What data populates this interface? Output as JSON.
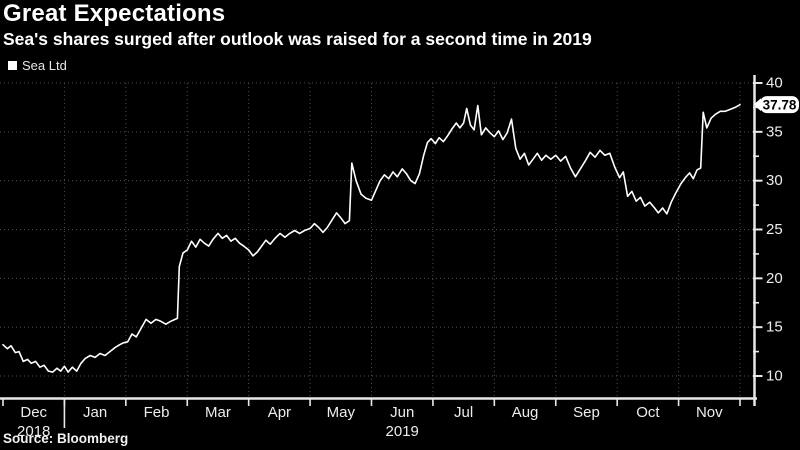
{
  "header": {
    "title": "Great Expectations",
    "subtitle": "Sea's shares surged after outlook was raised for a second time in 2019"
  },
  "legend": {
    "label": "Sea Ltd"
  },
  "source": "Source: Bloomberg",
  "colors": {
    "background": "#000000",
    "text": "#ffffff",
    "axis": "#e8e8e8",
    "grid": "#4f4f4f",
    "line": "#ffffff",
    "callout_bg": "#ffffff",
    "callout_text": "#000000"
  },
  "chart_data": {
    "type": "line",
    "title": "Great Expectations",
    "subtitle": "Sea's shares surged after outlook was raised for a second time in 2019",
    "legend_position": "top-left",
    "grid": true,
    "series_name": "Sea Ltd",
    "x_axis": {
      "unit": "months from Dec 1 2018",
      "months": [
        "Dec",
        "Jan",
        "Feb",
        "Mar",
        "Apr",
        "May",
        "Jun",
        "Jul",
        "Aug",
        "Sep",
        "Oct",
        "Nov"
      ],
      "year_labels": [
        {
          "text": "2018",
          "position_month": 0.5
        },
        {
          "text": "2019",
          "position_month": 6.5
        }
      ],
      "year_boundary_month": 1
    },
    "y_axis": {
      "side": "right",
      "major_ticks": [
        40,
        35,
        30,
        25,
        20,
        15,
        10
      ],
      "minor_ticks": [
        37.5,
        32.5,
        27.5,
        22.5,
        17.5,
        12.5
      ],
      "range": [
        7.7,
        40.6
      ]
    },
    "last_price": 37.78,
    "last_price_label": "37.78",
    "points": [
      [
        0.0,
        13.2
      ],
      [
        0.07,
        12.8
      ],
      [
        0.13,
        13.1
      ],
      [
        0.2,
        12.4
      ],
      [
        0.26,
        12.5
      ],
      [
        0.33,
        11.5
      ],
      [
        0.4,
        11.7
      ],
      [
        0.46,
        11.3
      ],
      [
        0.53,
        11.5
      ],
      [
        0.6,
        10.9
      ],
      [
        0.67,
        11.1
      ],
      [
        0.74,
        10.5
      ],
      [
        0.81,
        10.4
      ],
      [
        0.88,
        10.8
      ],
      [
        0.94,
        10.5
      ],
      [
        1.0,
        11.0
      ],
      [
        1.06,
        10.4
      ],
      [
        1.13,
        10.9
      ],
      [
        1.2,
        10.5
      ],
      [
        1.27,
        11.3
      ],
      [
        1.34,
        11.8
      ],
      [
        1.42,
        12.1
      ],
      [
        1.5,
        11.9
      ],
      [
        1.58,
        12.3
      ],
      [
        1.66,
        12.1
      ],
      [
        1.74,
        12.5
      ],
      [
        1.82,
        12.9
      ],
      [
        1.9,
        13.2
      ],
      [
        1.96,
        13.4
      ],
      [
        2.03,
        13.5
      ],
      [
        2.1,
        14.3
      ],
      [
        2.17,
        14.0
      ],
      [
        2.25,
        14.9
      ],
      [
        2.33,
        15.8
      ],
      [
        2.41,
        15.4
      ],
      [
        2.49,
        15.8
      ],
      [
        2.57,
        15.6
      ],
      [
        2.65,
        15.3
      ],
      [
        2.73,
        15.6
      ],
      [
        2.8,
        15.8
      ],
      [
        2.84,
        15.9
      ],
      [
        2.87,
        21.2
      ],
      [
        2.93,
        22.6
      ],
      [
        3.0,
        22.9
      ],
      [
        3.07,
        23.8
      ],
      [
        3.14,
        23.2
      ],
      [
        3.21,
        24.0
      ],
      [
        3.28,
        23.6
      ],
      [
        3.35,
        23.3
      ],
      [
        3.42,
        24.0
      ],
      [
        3.5,
        24.6
      ],
      [
        3.57,
        24.1
      ],
      [
        3.64,
        24.4
      ],
      [
        3.71,
        23.8
      ],
      [
        3.78,
        24.1
      ],
      [
        3.85,
        23.6
      ],
      [
        3.92,
        23.3
      ],
      [
        4.0,
        22.9
      ],
      [
        4.07,
        22.3
      ],
      [
        4.14,
        22.7
      ],
      [
        4.21,
        23.3
      ],
      [
        4.28,
        23.9
      ],
      [
        4.35,
        23.5
      ],
      [
        4.43,
        24.1
      ],
      [
        4.51,
        24.6
      ],
      [
        4.59,
        24.2
      ],
      [
        4.67,
        24.6
      ],
      [
        4.75,
        24.9
      ],
      [
        4.83,
        24.6
      ],
      [
        4.91,
        24.9
      ],
      [
        5.0,
        25.1
      ],
      [
        5.07,
        25.6
      ],
      [
        5.14,
        25.2
      ],
      [
        5.21,
        24.7
      ],
      [
        5.28,
        25.2
      ],
      [
        5.36,
        26.0
      ],
      [
        5.43,
        26.7
      ],
      [
        5.5,
        26.2
      ],
      [
        5.57,
        25.6
      ],
      [
        5.64,
        25.9
      ],
      [
        5.68,
        31.8
      ],
      [
        5.75,
        30.0
      ],
      [
        5.83,
        28.6
      ],
      [
        5.91,
        28.2
      ],
      [
        6.0,
        28.0
      ],
      [
        6.07,
        29.0
      ],
      [
        6.14,
        30.0
      ],
      [
        6.21,
        30.6
      ],
      [
        6.28,
        30.2
      ],
      [
        6.35,
        30.9
      ],
      [
        6.42,
        30.4
      ],
      [
        6.5,
        31.2
      ],
      [
        6.57,
        30.7
      ],
      [
        6.64,
        30.0
      ],
      [
        6.71,
        29.7
      ],
      [
        6.78,
        30.7
      ],
      [
        6.85,
        32.6
      ],
      [
        6.91,
        33.9
      ],
      [
        6.97,
        34.3
      ],
      [
        7.04,
        33.8
      ],
      [
        7.1,
        34.4
      ],
      [
        7.17,
        34.0
      ],
      [
        7.24,
        34.6
      ],
      [
        7.31,
        35.3
      ],
      [
        7.38,
        35.9
      ],
      [
        7.44,
        35.4
      ],
      [
        7.5,
        35.9
      ],
      [
        7.55,
        37.4
      ],
      [
        7.61,
        35.7
      ],
      [
        7.67,
        35.2
      ],
      [
        7.73,
        37.7
      ],
      [
        7.79,
        34.7
      ],
      [
        7.86,
        35.4
      ],
      [
        7.93,
        34.9
      ],
      [
        8.0,
        34.5
      ],
      [
        8.07,
        35.1
      ],
      [
        8.14,
        34.2
      ],
      [
        8.21,
        34.9
      ],
      [
        8.28,
        36.3
      ],
      [
        8.35,
        33.3
      ],
      [
        8.42,
        32.2
      ],
      [
        8.49,
        32.8
      ],
      [
        8.56,
        31.6
      ],
      [
        8.63,
        32.2
      ],
      [
        8.7,
        32.8
      ],
      [
        8.77,
        32.1
      ],
      [
        8.84,
        32.6
      ],
      [
        8.92,
        32.2
      ],
      [
        9.0,
        32.6
      ],
      [
        9.08,
        32.0
      ],
      [
        9.16,
        32.5
      ],
      [
        9.24,
        31.3
      ],
      [
        9.32,
        30.4
      ],
      [
        9.4,
        31.2
      ],
      [
        9.48,
        32.0
      ],
      [
        9.56,
        32.9
      ],
      [
        9.64,
        32.4
      ],
      [
        9.72,
        33.1
      ],
      [
        9.8,
        32.6
      ],
      [
        9.88,
        32.8
      ],
      [
        9.96,
        31.4
      ],
      [
        10.04,
        30.3
      ],
      [
        10.1,
        30.9
      ],
      [
        10.17,
        28.4
      ],
      [
        10.24,
        28.9
      ],
      [
        10.31,
        27.9
      ],
      [
        10.38,
        28.3
      ],
      [
        10.45,
        27.4
      ],
      [
        10.53,
        27.8
      ],
      [
        10.61,
        27.2
      ],
      [
        10.67,
        26.7
      ],
      [
        10.74,
        27.2
      ],
      [
        10.81,
        26.6
      ],
      [
        10.88,
        27.8
      ],
      [
        10.96,
        28.8
      ],
      [
        11.04,
        29.7
      ],
      [
        11.11,
        30.3
      ],
      [
        11.18,
        30.8
      ],
      [
        11.24,
        30.2
      ],
      [
        11.3,
        31.1
      ],
      [
        11.36,
        31.3
      ],
      [
        11.4,
        37.0
      ],
      [
        11.46,
        35.4
      ],
      [
        11.53,
        36.4
      ],
      [
        11.6,
        36.8
      ],
      [
        11.68,
        37.1
      ],
      [
        11.76,
        37.1
      ],
      [
        11.84,
        37.3
      ],
      [
        11.92,
        37.5
      ],
      [
        12.0,
        37.78
      ]
    ]
  }
}
